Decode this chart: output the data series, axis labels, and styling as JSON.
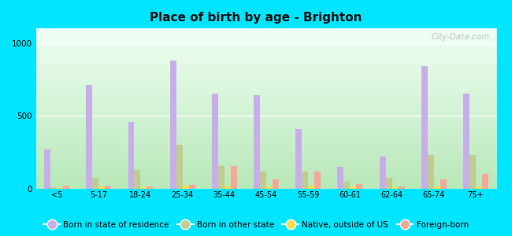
{
  "title": "Place of birth by age - Brighton",
  "categories": [
    "<5",
    "5-17",
    "18-24",
    "25-34",
    "35-44",
    "45-54",
    "55-59",
    "60-61",
    "62-64",
    "65-74",
    "75+"
  ],
  "series": {
    "Born in state of residence": [
      270,
      710,
      460,
      880,
      650,
      640,
      410,
      150,
      220,
      840,
      650
    ],
    "Born in other state": [
      10,
      75,
      130,
      300,
      155,
      120,
      120,
      50,
      75,
      230,
      230
    ],
    "Native, outside of US": [
      5,
      15,
      10,
      20,
      20,
      15,
      20,
      15,
      10,
      15,
      15
    ],
    "Foreign-born": [
      20,
      20,
      15,
      25,
      155,
      65,
      120,
      30,
      15,
      65,
      100
    ]
  },
  "colors": {
    "Born in state of residence": "#c8aee8",
    "Born in other state": "#c0cc90",
    "Native, outside of US": "#f0e050",
    "Foreign-born": "#f4a898"
  },
  "ylim": [
    0,
    1100
  ],
  "yticks": [
    0,
    500,
    1000
  ],
  "figure_bg": "#00e5ff",
  "bar_width": 0.15,
  "watermark": "City-Data.com"
}
